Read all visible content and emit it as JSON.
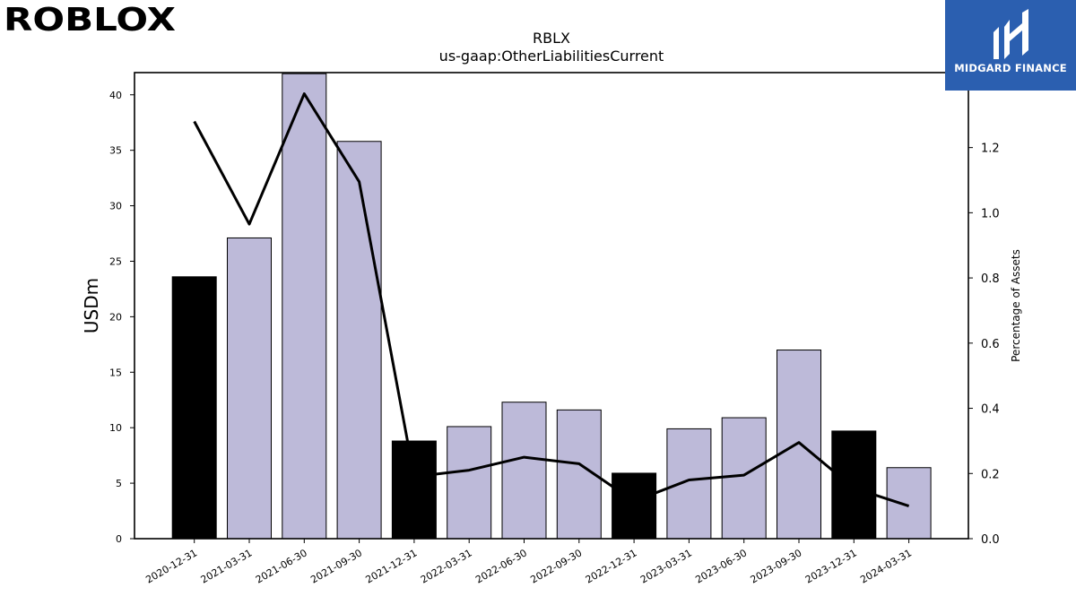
{
  "brands": {
    "left_logo": "ROBLOX",
    "right_logo": "MIDGARD FINANCE"
  },
  "chart_data": {
    "type": "bar",
    "title": "RBLX",
    "subtitle": "us-gaap:OtherLiabilitiesCurrent",
    "ylabel": "USDm",
    "ylabel_right": "Percentage of Assets",
    "categories": [
      "2020-12-31",
      "2021-03-31",
      "2021-06-30",
      "2021-09-30",
      "2021-12-31",
      "2022-03-31",
      "2022-06-30",
      "2022-09-30",
      "2022-12-31",
      "2023-03-31",
      "2023-06-30",
      "2023-09-30",
      "2023-12-31",
      "2024-03-31"
    ],
    "series": [
      {
        "type": "bar",
        "values": [
          23.6,
          27.1,
          41.9,
          35.8,
          8.8,
          10.1,
          12.3,
          11.6,
          5.9,
          9.9,
          10.9,
          17.0,
          9.7,
          6.4
        ],
        "colors": [
          "#000000",
          "#bdbad9",
          "#bdbad9",
          "#bdbad9",
          "#000000",
          "#bdbad9",
          "#bdbad9",
          "#bdbad9",
          "#000000",
          "#bdbad9",
          "#bdbad9",
          "#bdbad9",
          "#000000",
          "#bdbad9"
        ]
      },
      {
        "type": "line",
        "axis": "right",
        "values": [
          1.28,
          0.965,
          1.365,
          1.095,
          0.19,
          0.21,
          0.25,
          0.23,
          0.115,
          0.18,
          0.195,
          0.295,
          0.155,
          0.1
        ],
        "color": "#000000"
      }
    ],
    "ylim": [
      0,
      42
    ],
    "ylim_right": [
      0,
      1.43
    ],
    "yticks": [
      0,
      5,
      10,
      15,
      20,
      25,
      30,
      35,
      40
    ],
    "yticks_right": [
      "0.0",
      "0.2",
      "0.4",
      "0.6",
      "0.8",
      "1.0",
      "1.2"
    ],
    "grid": false
  }
}
